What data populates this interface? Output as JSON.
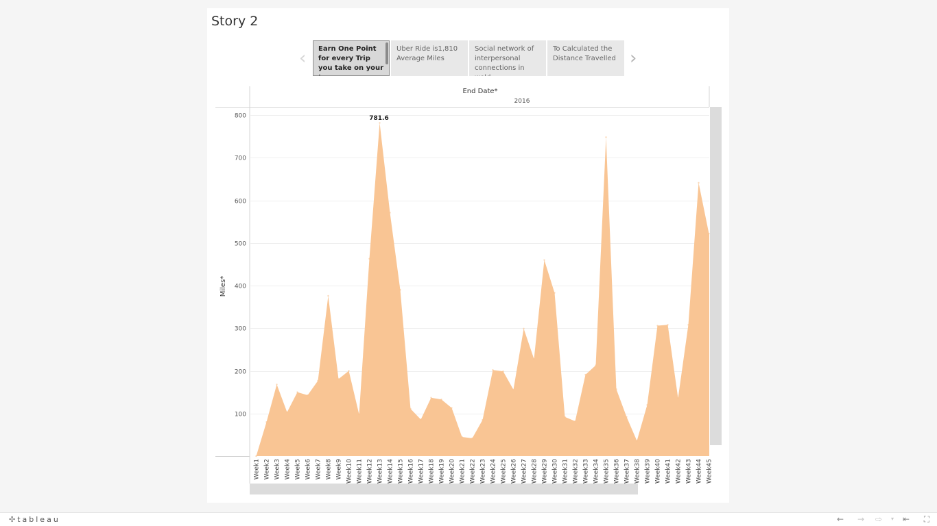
{
  "story": {
    "title": "Story 2",
    "points": [
      {
        "text": "Earn One Point for every Trip you take on your tax",
        "active": true
      },
      {
        "text": "Uber Ride is1,810 Average  Miles",
        "active": false
      },
      {
        "text": "Social network of interpersonal connections in wold",
        "active": false
      },
      {
        "text": "To Calculated the Distance Travelled",
        "active": false
      }
    ],
    "prev_icon": "chevron-left-icon",
    "next_icon": "chevron-right-icon"
  },
  "chart_data": {
    "type": "area",
    "column_header": "End Date*",
    "year_header": "2016",
    "ylabel": "Miles*",
    "ylim": [
      0,
      800
    ],
    "yticks": [
      100,
      200,
      300,
      400,
      500,
      600,
      700,
      800
    ],
    "grid": true,
    "color": "#f9c28e",
    "annotation": {
      "category": "Week13",
      "label": "781.6"
    },
    "categories": [
      "Week1",
      "Week2",
      "Week3",
      "Week4",
      "Week5",
      "Week6",
      "Week7",
      "Week8",
      "Week9",
      "Week10",
      "Week11",
      "Week12",
      "Week13",
      "Week14",
      "Week15",
      "Week16",
      "Week17",
      "Week18",
      "Week19",
      "Week20",
      "Week21",
      "Week22",
      "Week23",
      "Week24",
      "Week25",
      "Week26",
      "Week27",
      "Week28",
      "Week29",
      "Week30",
      "Week31",
      "Week32",
      "Week33",
      "Week34",
      "Week35",
      "Week36",
      "Week37",
      "Week38",
      "Week39",
      "Week40",
      "Week41",
      "Week42",
      "Week43",
      "Week44",
      "Week45"
    ],
    "values": [
      0,
      80,
      168,
      103,
      150,
      143,
      177,
      376,
      181,
      200,
      98,
      463,
      781.6,
      571,
      390,
      111,
      86,
      137,
      133,
      113,
      45,
      42,
      85,
      202,
      199,
      156,
      299,
      228,
      460,
      383,
      92,
      82,
      191,
      213,
      748,
      157,
      92,
      36,
      120,
      306,
      308,
      136,
      308,
      641,
      522
    ]
  },
  "toolbar": {
    "logo_text": "tableau",
    "logo_icon": "tableau-logo-icon",
    "buttons": [
      "undo-icon",
      "redo-icon",
      "revert-icon",
      "share-dropdown-icon",
      "revert-to-start-icon",
      "fullscreen-icon"
    ]
  }
}
